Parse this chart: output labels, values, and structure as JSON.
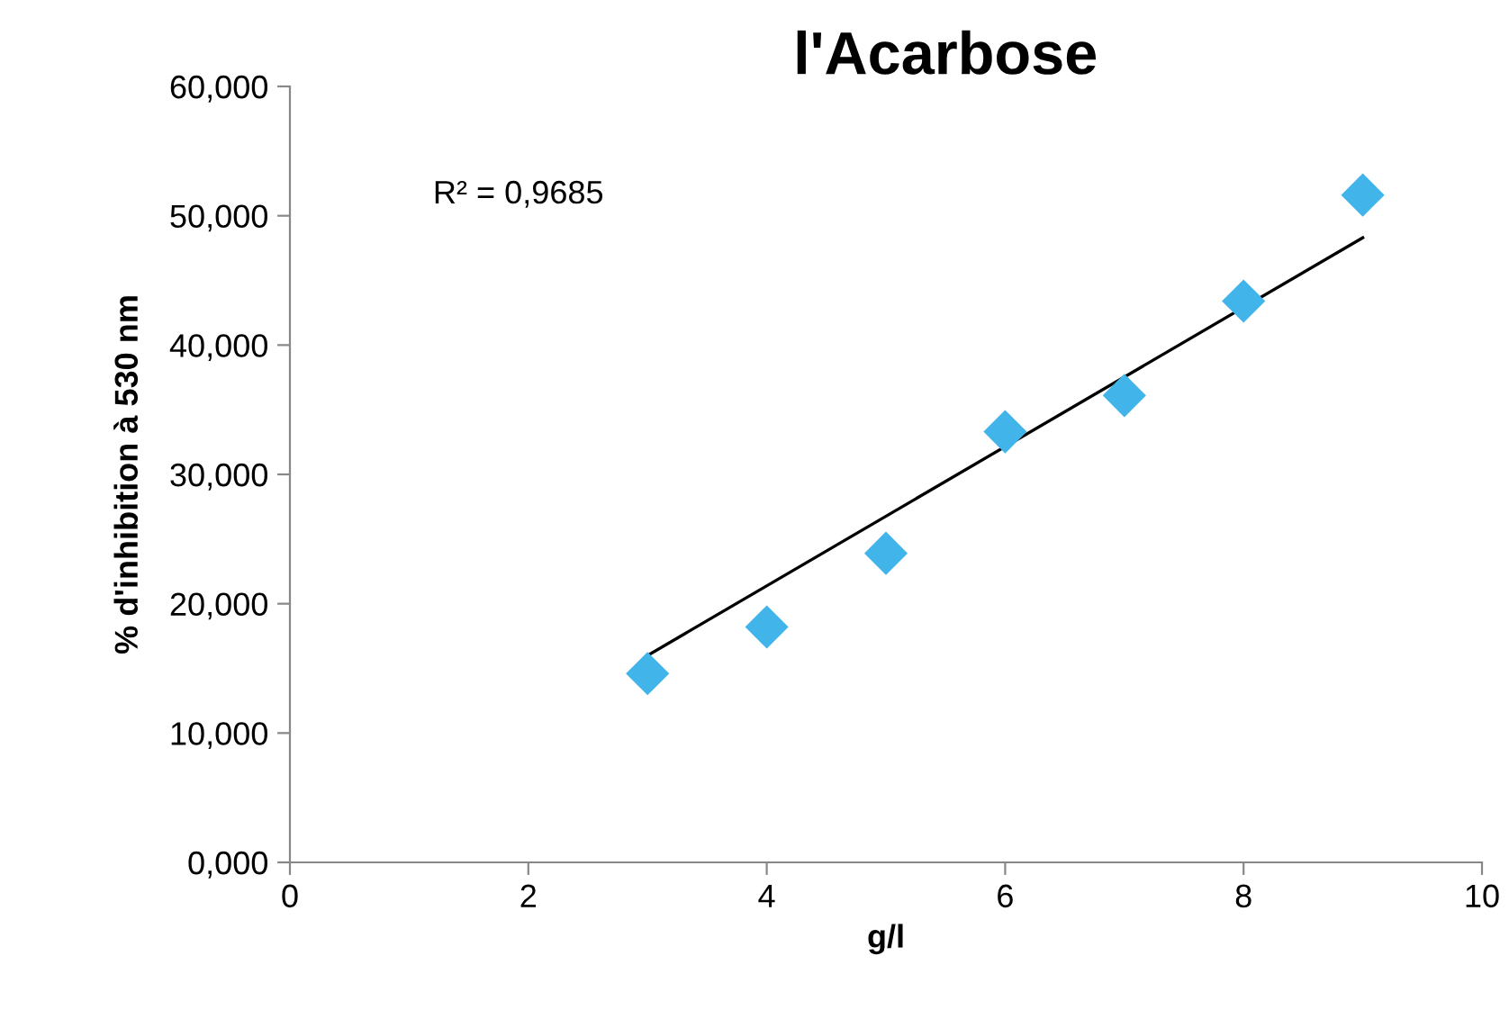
{
  "chart_data": {
    "type": "scatter",
    "title": "l'Acarbose",
    "xlabel": "g/l",
    "ylabel": "% d'inhibition à 530 nm",
    "annotations": [
      "R² = 0,9685"
    ],
    "x": [
      3,
      4,
      5,
      6,
      7,
      8,
      9
    ],
    "series": [
      {
        "color": "#41b4ea",
        "marker": "diamond",
        "values": [
          14.6,
          18.2,
          23.9,
          33.3,
          36.1,
          43.4,
          51.6
        ]
      },
      {
        "type": "line",
        "color": "#000000",
        "marker": "none",
        "x": [
          3,
          9
        ],
        "values": [
          16.0,
          48.3
        ]
      }
    ],
    "xlim": [
      0,
      10
    ],
    "xticks": [
      0,
      2,
      4,
      6,
      8,
      10
    ],
    "ylim": [
      0,
      60
    ],
    "yticks": [
      {
        "value": 0,
        "label": "0,000"
      },
      {
        "value": 10,
        "label": "10,000"
      },
      {
        "value": 20,
        "label": "20,000"
      },
      {
        "value": 30,
        "label": "30,000"
      },
      {
        "value": 40,
        "label": "40,000"
      },
      {
        "value": 50,
        "label": "50,000"
      },
      {
        "value": 60,
        "label": "60,000"
      }
    ],
    "grid": false,
    "legend": false
  }
}
